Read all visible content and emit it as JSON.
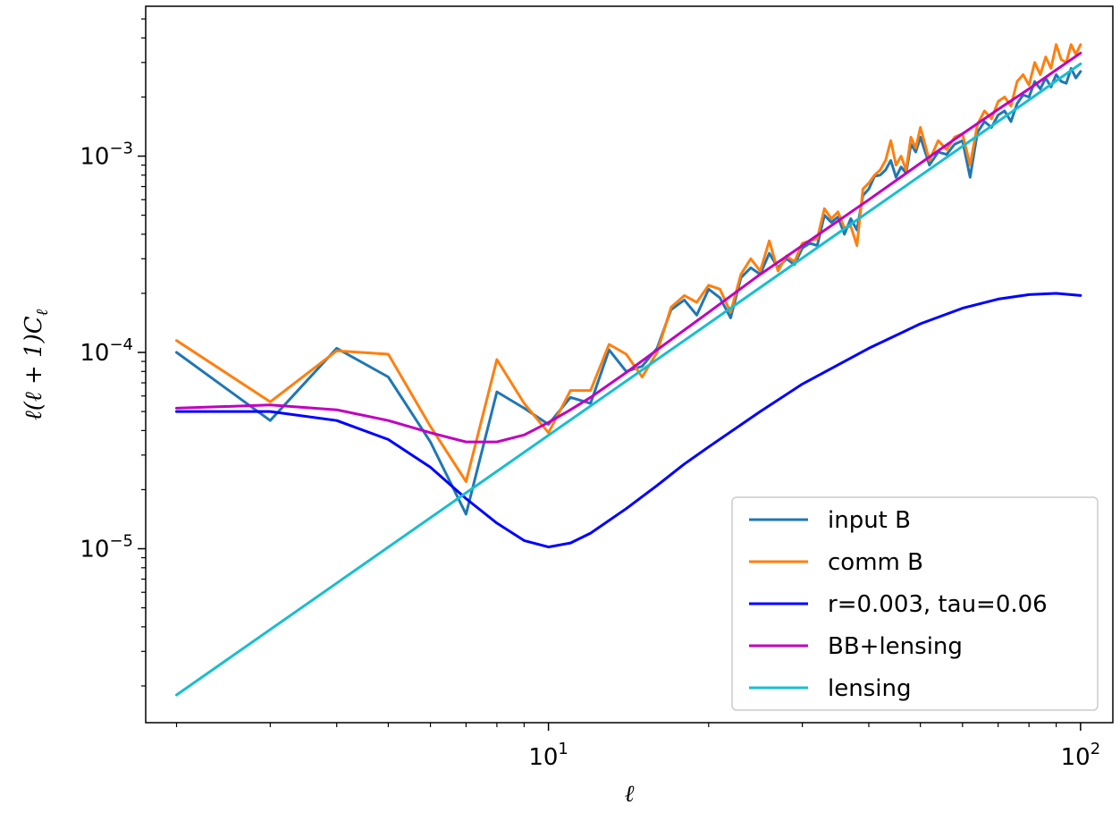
{
  "chart_data": {
    "type": "line",
    "xlabel": "ℓ",
    "ylabel": "ℓ(ℓ + 1)C_ℓ",
    "xscale": "log",
    "yscale": "log",
    "xlim": [
      1.75,
      115
    ],
    "ylim": [
      1.3e-06,
      0.0058
    ],
    "grid": false,
    "legend_location": "lower-right",
    "xticks": [
      {
        "value": 10,
        "base": "10",
        "exp": "1"
      },
      {
        "value": 100,
        "base": "10",
        "exp": "2"
      }
    ],
    "yticks": [
      {
        "value": 1e-05,
        "base": "10",
        "exp": "−5"
      },
      {
        "value": 0.0001,
        "base": "10",
        "exp": "−4"
      },
      {
        "value": 0.001,
        "base": "10",
        "exp": "−3"
      }
    ],
    "series": [
      {
        "name": "input B",
        "color": "#1f77b4",
        "x": [
          2,
          3,
          4,
          5,
          6,
          7,
          8,
          9,
          10,
          11,
          12,
          13,
          14,
          15,
          16,
          17,
          18,
          19,
          20,
          21,
          22,
          23,
          24,
          25,
          26,
          27,
          28,
          29,
          30,
          31,
          32,
          33,
          34,
          35,
          36,
          37,
          38,
          39,
          40,
          41,
          42,
          43,
          44,
          45,
          46,
          47,
          48,
          49,
          50,
          52,
          54,
          56,
          58,
          60,
          62,
          64,
          66,
          68,
          70,
          72,
          74,
          76,
          78,
          80,
          82,
          84,
          86,
          88,
          90,
          92,
          94,
          96,
          98,
          100
        ],
        "y": [
          0.0001,
          4.5e-05,
          0.000105,
          7.5e-05,
          3.5e-05,
          1.5e-05,
          6.3e-05,
          5.2e-05,
          4.3e-05,
          5.9e-05,
          5.5e-05,
          0.000103,
          8e-05,
          8.5e-05,
          0.000105,
          0.000165,
          0.000185,
          0.000155,
          0.00021,
          0.00019,
          0.00015,
          0.00024,
          0.00027,
          0.00025,
          0.00032,
          0.00027,
          0.0003,
          0.00028,
          0.00034,
          0.00036,
          0.00035,
          0.0005,
          0.00046,
          0.00049,
          0.0004,
          0.00048,
          0.00042,
          0.00063,
          0.00068,
          0.00079,
          0.0008,
          0.00085,
          0.00095,
          0.00078,
          0.00088,
          0.00082,
          0.00115,
          0.00105,
          0.00125,
          0.0009,
          0.00105,
          0.00102,
          0.00115,
          0.0012,
          0.00078,
          0.00132,
          0.0015,
          0.0014,
          0.00162,
          0.0017,
          0.0015,
          0.00185,
          0.00205,
          0.002,
          0.0024,
          0.0022,
          0.0025,
          0.00225,
          0.0026,
          0.0024,
          0.00235,
          0.0028,
          0.0025,
          0.0027
        ]
      },
      {
        "name": "comm B",
        "color": "#ff7f0e",
        "x": [
          2,
          3,
          4,
          5,
          6,
          7,
          8,
          9,
          10,
          11,
          12,
          13,
          14,
          15,
          16,
          17,
          18,
          19,
          20,
          21,
          22,
          23,
          24,
          25,
          26,
          27,
          28,
          29,
          30,
          31,
          32,
          33,
          34,
          35,
          36,
          37,
          38,
          39,
          40,
          41,
          42,
          43,
          44,
          45,
          46,
          47,
          48,
          49,
          50,
          52,
          54,
          56,
          58,
          60,
          62,
          64,
          66,
          68,
          70,
          72,
          74,
          76,
          78,
          80,
          82,
          84,
          86,
          88,
          90,
          92,
          94,
          96,
          98,
          100
        ],
        "y": [
          0.000115,
          5.6e-05,
          0.000102,
          9.8e-05,
          4.2e-05,
          2.2e-05,
          9.2e-05,
          5.5e-05,
          3.9e-05,
          6.4e-05,
          6.4e-05,
          0.00011,
          9.8e-05,
          7.5e-05,
          0.0001,
          0.00017,
          0.000195,
          0.00018,
          0.00022,
          0.00021,
          0.00016,
          0.00025,
          0.0003,
          0.00026,
          0.00037,
          0.00026,
          0.00031,
          0.00029,
          0.00036,
          0.00037,
          0.00038,
          0.00054,
          0.00048,
          0.00052,
          0.00043,
          0.00044,
          0.00035,
          0.00068,
          0.00073,
          0.0008,
          0.00085,
          0.00095,
          0.0012,
          0.0009,
          0.001,
          0.00085,
          0.00125,
          0.0011,
          0.0014,
          0.00095,
          0.0012,
          0.00108,
          0.00125,
          0.0013,
          0.0009,
          0.00145,
          0.0017,
          0.00155,
          0.0019,
          0.002,
          0.0018,
          0.0024,
          0.0026,
          0.0023,
          0.003,
          0.0026,
          0.0032,
          0.0028,
          0.0037,
          0.0031,
          0.003,
          0.0037,
          0.0033,
          0.0037
        ]
      },
      {
        "name": "r=0.003, tau=0.06",
        "color": "#0000ff",
        "x": [
          2,
          3,
          4,
          5,
          6,
          7,
          8,
          9,
          10,
          11,
          12,
          14,
          16,
          18,
          20,
          25,
          30,
          40,
          50,
          60,
          70,
          80,
          90,
          100
        ],
        "y": [
          5e-05,
          5e-05,
          4.5e-05,
          3.6e-05,
          2.6e-05,
          1.8e-05,
          1.35e-05,
          1.1e-05,
          1.02e-05,
          1.07e-05,
          1.2e-05,
          1.6e-05,
          2.1e-05,
          2.7e-05,
          3.3e-05,
          5e-05,
          6.9e-05,
          0.000105,
          0.00014,
          0.000168,
          0.000187,
          0.000197,
          0.0002,
          0.000195
        ]
      },
      {
        "name": "BB+lensing",
        "color": "#c000c0",
        "x": [
          2,
          3,
          4,
          5,
          6,
          7,
          8,
          9,
          10,
          11,
          12,
          14,
          16,
          18,
          20,
          25,
          30,
          40,
          50,
          60,
          70,
          80,
          90,
          100
        ],
        "y": [
          5.2e-05,
          5.4e-05,
          5.1e-05,
          4.5e-05,
          3.9e-05,
          3.5e-05,
          3.5e-05,
          3.8e-05,
          4.4e-05,
          5.1e-05,
          5.9e-05,
          7.9e-05,
          0.000103,
          0.00013,
          0.00016,
          0.00025,
          0.00035,
          0.0006,
          0.00092,
          0.0013,
          0.00173,
          0.0022,
          0.00275,
          0.00335
        ]
      },
      {
        "name": "lensing",
        "color": "#17becf",
        "x": [
          2,
          100
        ],
        "y": [
          1.8e-06,
          0.00295
        ]
      }
    ]
  }
}
